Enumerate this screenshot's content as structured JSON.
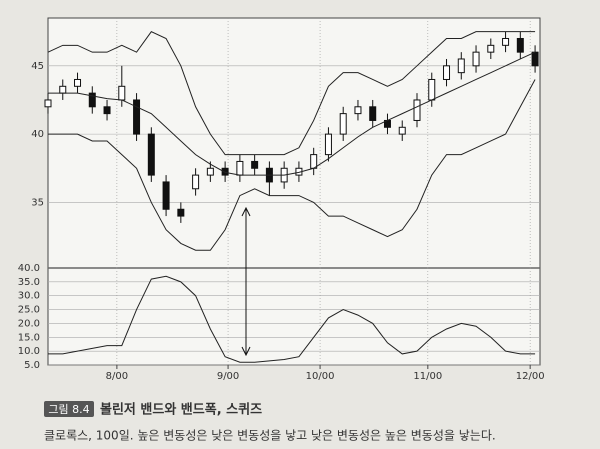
{
  "chart_data": [
    {
      "type": "candlestick",
      "figure_label": "그림 8.4",
      "title": "볼린저 밴드와 밴드폭, 스퀴즈",
      "caption": "클로록스, 100일. 높은 변동성은 낮은 변동성을 낳고 낮은 변동성은 높은 변동성을 낳는다.",
      "x": [
        0,
        3,
        6,
        9,
        12,
        15,
        18,
        21,
        24,
        27,
        30,
        33,
        36,
        39,
        42,
        45,
        48,
        51,
        54,
        57,
        60,
        63,
        66,
        69,
        72,
        75,
        78,
        81,
        84,
        87,
        90,
        93,
        96,
        99
      ],
      "open": [
        42.0,
        43.0,
        43.5,
        43.0,
        42.0,
        42.5,
        42.5,
        40.0,
        36.5,
        34.5,
        36.0,
        37.0,
        37.5,
        37.0,
        38.0,
        37.5,
        36.5,
        37.0,
        37.5,
        38.5,
        40.0,
        41.5,
        42.0,
        41.0,
        40.0,
        41.0,
        42.5,
        44.0,
        44.5,
        45.0,
        46.0,
        46.5,
        47.0,
        46.0
      ],
      "close": [
        42.5,
        43.5,
        44.0,
        42.0,
        41.5,
        43.5,
        40.0,
        37.0,
        34.5,
        34.0,
        37.0,
        37.5,
        37.0,
        38.0,
        37.5,
        36.5,
        37.5,
        37.5,
        38.5,
        40.0,
        41.5,
        42.0,
        41.0,
        40.5,
        40.5,
        42.5,
        44.0,
        45.0,
        45.5,
        46.0,
        46.5,
        47.0,
        46.0,
        45.0
      ],
      "high": [
        43.0,
        44.0,
        44.5,
        43.5,
        42.5,
        45.0,
        43.0,
        40.5,
        37.0,
        35.0,
        37.5,
        38.0,
        38.0,
        38.5,
        38.5,
        38.0,
        38.0,
        38.0,
        39.0,
        40.5,
        42.0,
        42.5,
        42.5,
        41.5,
        41.0,
        43.0,
        44.5,
        45.5,
        46.0,
        46.5,
        47.0,
        47.5,
        47.5,
        46.5
      ],
      "low": [
        41.5,
        42.5,
        43.0,
        41.5,
        41.0,
        42.0,
        39.5,
        36.5,
        34.0,
        33.5,
        35.5,
        36.5,
        36.5,
        36.5,
        37.0,
        35.5,
        36.0,
        36.5,
        37.0,
        38.0,
        39.5,
        41.0,
        40.5,
        40.0,
        39.5,
        40.5,
        42.0,
        43.5,
        44.0,
        44.5,
        45.5,
        46.0,
        45.5,
        44.5
      ],
      "series": [
        {
          "color": "#222222",
          "values": [
            46,
            46.5,
            46.5,
            46,
            46,
            46.5,
            46,
            47.5,
            47,
            45,
            42,
            40,
            38.5,
            38.5,
            38.5,
            38.5,
            38.5,
            39,
            41,
            43.5,
            44.5,
            44.5,
            44,
            43.5,
            44,
            45,
            46,
            47,
            47,
            47.5,
            47.5,
            47.5,
            47.5,
            47.5
          ]
        },
        {
          "color": "#222222",
          "values": [
            43,
            43,
            43,
            42.8,
            42.6,
            42.5,
            42,
            41.5,
            40.5,
            39.5,
            38.5,
            37.8,
            37.2,
            37,
            37,
            37,
            37,
            37.2,
            37.5,
            38.2,
            39,
            39.8,
            40.5,
            41,
            41.5,
            42,
            42.5,
            43,
            43.5,
            44,
            44.5,
            45,
            45.5,
            46
          ]
        },
        {
          "color": "#222222",
          "values": [
            40,
            40,
            40,
            39.5,
            39.5,
            38.5,
            37.5,
            35,
            33,
            32,
            31.5,
            31.5,
            33,
            35.5,
            36,
            35.5,
            35.5,
            35.5,
            35,
            34,
            34,
            33.5,
            33,
            32.5,
            33,
            34.5,
            37,
            38.5,
            38.5,
            39,
            39.5,
            40,
            42,
            44
          ]
        }
      ],
      "xlim": [
        0,
        100
      ],
      "ylim": [
        30.2,
        48.5
      ],
      "yticks": [
        35,
        40,
        45
      ],
      "grid": true
    },
    {
      "type": "line",
      "x": [
        0,
        3,
        6,
        9,
        12,
        15,
        18,
        21,
        24,
        27,
        30,
        33,
        36,
        39,
        42,
        45,
        48,
        51,
        54,
        57,
        60,
        63,
        66,
        69,
        72,
        75,
        78,
        81,
        84,
        87,
        90,
        93,
        96,
        99
      ],
      "series": [
        {
          "color": "#222222",
          "values": [
            9,
            9,
            10,
            11,
            12,
            12,
            25,
            36,
            37,
            35,
            30,
            18,
            8,
            6,
            6,
            6.5,
            7,
            8,
            15,
            22,
            25,
            23,
            20,
            13,
            9,
            10,
            15,
            18,
            20,
            19,
            15,
            10,
            9,
            9
          ]
        }
      ],
      "xlim": [
        0,
        100
      ],
      "ylim": [
        5,
        40
      ],
      "yticks": [
        {
          "value": 5,
          "label": "5.0"
        },
        {
          "value": 10,
          "label": "10.0"
        },
        {
          "value": 15,
          "label": "15.0"
        },
        {
          "value": 20,
          "label": "20.0"
        },
        {
          "value": 25,
          "label": "25.0"
        },
        {
          "value": 30,
          "label": "30.0"
        },
        {
          "value": 35,
          "label": "35.0"
        },
        {
          "value": 40,
          "label": "40.0"
        }
      ],
      "xticks": [
        {
          "value": 14,
          "label": "8/00"
        },
        {
          "value": 36.6,
          "label": "9/00"
        },
        {
          "value": 55.3,
          "label": "10/00"
        },
        {
          "value": 77.2,
          "label": "11/00"
        },
        {
          "value": 98,
          "label": "12/00"
        }
      ],
      "grid": true
    }
  ]
}
